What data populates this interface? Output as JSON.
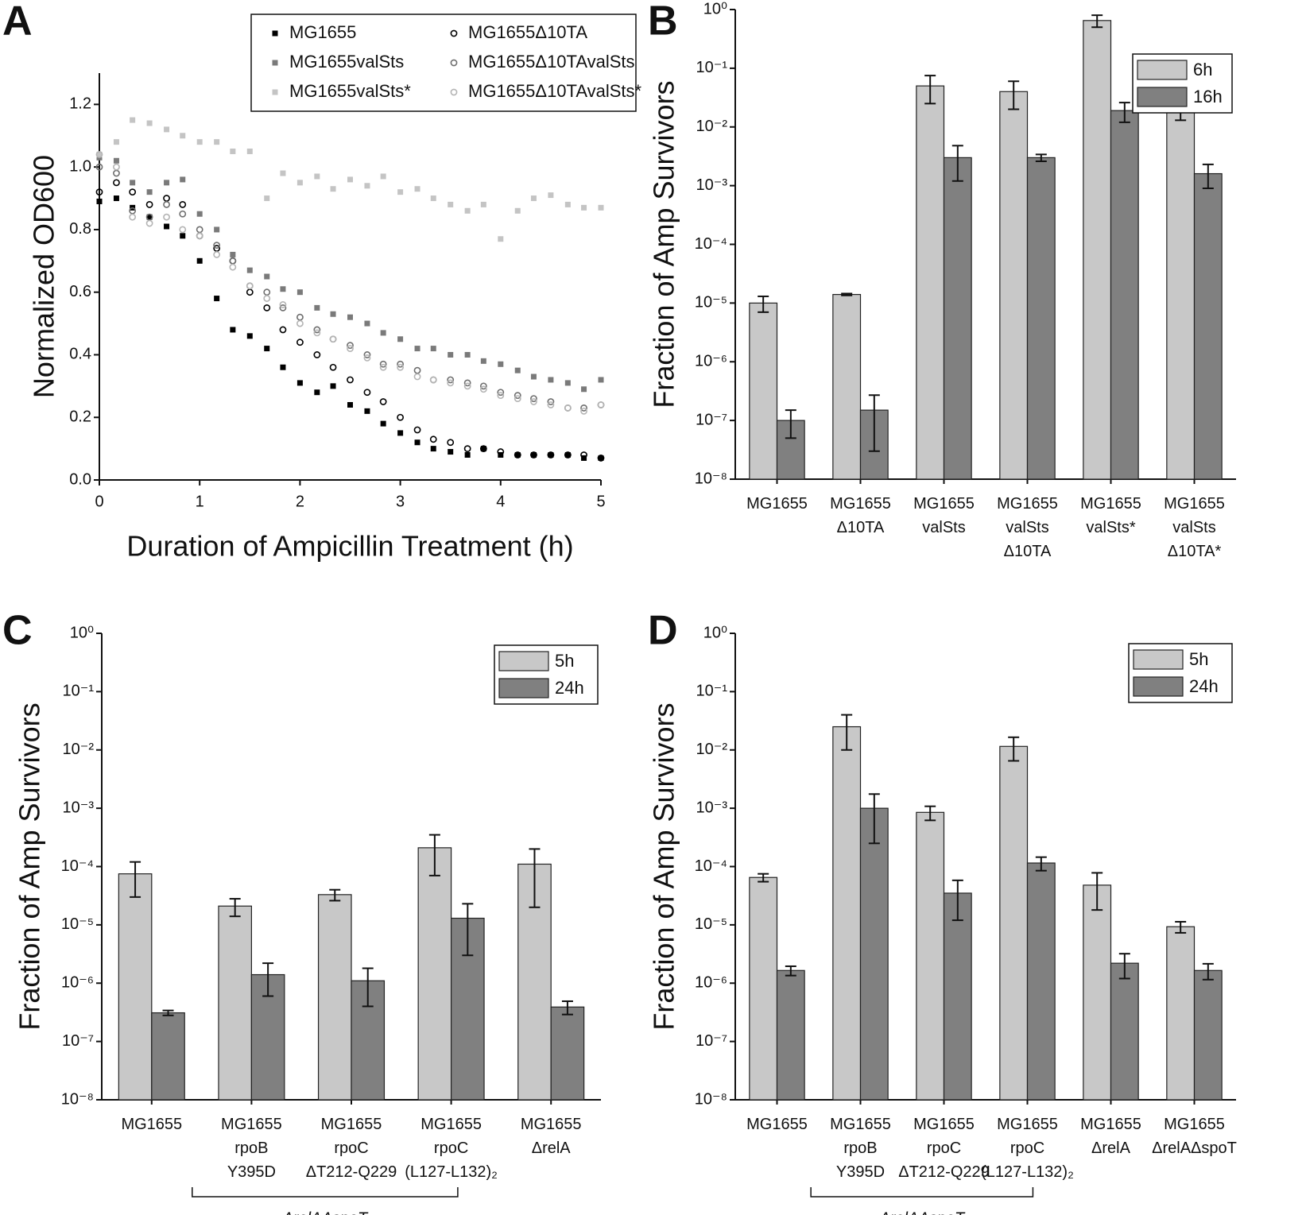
{
  "chart_data": [
    {
      "type": "scatter",
      "panel": "A",
      "xlabel": "Duration of Ampicillin Treatment (h)",
      "ylabel": "Normalized OD600",
      "xlim": [
        0,
        5
      ],
      "xticks": [
        0,
        1,
        2,
        3,
        4,
        5
      ],
      "ylim": [
        0,
        1.3
      ],
      "yticks": [
        {
          "value": 0,
          "label": "0.0"
        },
        0.2,
        0.4,
        0.6,
        0.8,
        {
          "value": 1,
          "label": "1.0"
        },
        1.2
      ],
      "legend": "upper right",
      "x": [
        0,
        0.17,
        0.33,
        0.5,
        0.67,
        0.83,
        1,
        1.17,
        1.33,
        1.5,
        1.67,
        1.83,
        2,
        2.17,
        2.33,
        2.5,
        2.67,
        2.83,
        3,
        3.17,
        3.33,
        3.5,
        3.67,
        3.83,
        4,
        4.17,
        4.33,
        4.5,
        4.67,
        4.83,
        5
      ],
      "series": [
        {
          "name": "MG1655",
          "color": "#000000",
          "marker": "square",
          "values": [
            0.89,
            0.9,
            0.87,
            0.84,
            0.81,
            0.78,
            0.7,
            0.58,
            0.48,
            0.46,
            0.42,
            0.36,
            0.31,
            0.28,
            0.3,
            0.24,
            0.22,
            0.18,
            0.15,
            0.12,
            0.1,
            0.09,
            0.08,
            0.1,
            0.08,
            0.08,
            0.08,
            0.08,
            0.08,
            0.07,
            0.07
          ]
        },
        {
          "name": "MG1655valSts",
          "color": "#7a7a7a",
          "marker": "square",
          "values": [
            1.03,
            1.02,
            0.95,
            0.92,
            0.95,
            0.96,
            0.85,
            0.8,
            0.72,
            0.67,
            0.65,
            0.61,
            0.6,
            0.55,
            0.53,
            0.52,
            0.5,
            0.47,
            0.45,
            0.42,
            0.42,
            0.4,
            0.4,
            0.38,
            0.37,
            0.35,
            0.33,
            0.32,
            0.31,
            0.29,
            0.32
          ]
        },
        {
          "name": "MG1655valSts*",
          "color": "#c4c4c4",
          "marker": "square",
          "values": [
            1.04,
            1.08,
            1.15,
            1.14,
            1.12,
            1.1,
            1.08,
            1.08,
            1.05,
            1.05,
            0.9,
            0.98,
            0.95,
            0.97,
            0.93,
            0.96,
            0.94,
            0.97,
            0.92,
            0.93,
            0.9,
            0.88,
            0.86,
            0.88,
            0.77,
            0.86,
            0.9,
            0.91,
            0.88,
            0.87,
            0.87
          ]
        },
        {
          "name": "MG1655Δ10TA",
          "color": "#000000",
          "marker": "circle",
          "values": [
            0.92,
            0.95,
            0.92,
            0.88,
            0.9,
            0.88,
            0.78,
            0.74,
            0.7,
            0.6,
            0.55,
            0.48,
            0.44,
            0.4,
            0.36,
            0.32,
            0.28,
            0.25,
            0.2,
            0.16,
            0.13,
            0.12,
            0.1,
            0.1,
            0.09,
            0.08,
            0.08,
            0.08,
            0.08,
            0.08,
            0.07
          ]
        },
        {
          "name": "MG1655Δ10TAvalSts",
          "color": "#6e6e6e",
          "marker": "circle",
          "values": [
            1.0,
            0.98,
            0.86,
            0.84,
            0.88,
            0.85,
            0.8,
            0.75,
            0.7,
            0.62,
            0.6,
            0.55,
            0.52,
            0.48,
            0.45,
            0.43,
            0.4,
            0.37,
            0.37,
            0.35,
            0.32,
            0.32,
            0.31,
            0.3,
            0.28,
            0.27,
            0.26,
            0.25,
            0.23,
            0.23,
            0.24
          ]
        },
        {
          "name": "MG1655Δ10TAvalSts*",
          "color": "#b4b4b4",
          "marker": "circle",
          "values": [
            1.04,
            1.0,
            0.84,
            0.82,
            0.84,
            0.8,
            0.78,
            0.72,
            0.68,
            0.62,
            0.58,
            0.56,
            0.5,
            0.47,
            0.45,
            0.42,
            0.39,
            0.36,
            0.36,
            0.33,
            0.32,
            0.31,
            0.3,
            0.29,
            0.27,
            0.26,
            0.25,
            0.24,
            0.23,
            0.22,
            0.24
          ]
        }
      ]
    },
    {
      "type": "bar",
      "panel": "B",
      "ylabel": "Fraction of Amp Survivors",
      "yscale": "log",
      "ylim": [
        1e-08,
        1
      ],
      "yticks": [
        {
          "value": 1,
          "label": "10⁰"
        },
        {
          "value": 0.1,
          "label": "10⁻¹"
        },
        {
          "value": 0.01,
          "label": "10⁻²"
        },
        {
          "value": 0.001,
          "label": "10⁻³"
        },
        {
          "value": 0.0001,
          "label": "10⁻⁴"
        },
        {
          "value": 1e-05,
          "label": "10⁻⁵"
        },
        {
          "value": 1e-06,
          "label": "10⁻⁶"
        },
        {
          "value": 1e-07,
          "label": "10⁻⁷"
        },
        {
          "value": 1e-08,
          "label": "10⁻⁸"
        }
      ],
      "legend": "upper right",
      "categories": [
        [
          "MG1655"
        ],
        [
          "MG1655",
          "Δ10TA"
        ],
        [
          "MG1655",
          "valSts"
        ],
        [
          "MG1655",
          "valSts",
          "Δ10TA"
        ],
        [
          "MG1655",
          "valSts*"
        ],
        [
          "MG1655",
          "valSts",
          "Δ10TA*"
        ]
      ],
      "series": [
        {
          "name": "6h",
          "color": "#c8c8c8",
          "values": [
            1e-05,
            1.4e-05,
            0.05,
            0.04,
            0.65,
            0.028
          ],
          "errors": [
            3e-06,
            5e-07,
            0.025,
            0.02,
            0.15,
            0.015
          ]
        },
        {
          "name": "16h",
          "color": "#808080",
          "values": [
            1e-07,
            1.5e-07,
            0.003,
            0.003,
            0.019,
            0.0016
          ],
          "errors": [
            5e-08,
            1.2e-07,
            0.0018,
            0.0004,
            0.007,
            0.0007
          ]
        }
      ]
    },
    {
      "type": "bar",
      "panel": "C",
      "ylabel": "Fraction of Amp Survivors",
      "yscale": "log",
      "ylim": [
        1e-08,
        1
      ],
      "yticks": [
        {
          "value": 1,
          "label": "10⁰"
        },
        {
          "value": 0.1,
          "label": "10⁻¹"
        },
        {
          "value": 0.01,
          "label": "10⁻²"
        },
        {
          "value": 0.001,
          "label": "10⁻³"
        },
        {
          "value": 0.0001,
          "label": "10⁻⁴"
        },
        {
          "value": 1e-05,
          "label": "10⁻⁵"
        },
        {
          "value": 1e-06,
          "label": "10⁻⁶"
        },
        {
          "value": 1e-07,
          "label": "10⁻⁷"
        },
        {
          "value": 1e-08,
          "label": "10⁻⁸"
        }
      ],
      "legend": "upper right",
      "bracket": "ΔrelAΔspoT",
      "categories": [
        [
          "MG1655"
        ],
        [
          "MG1655",
          "rpoB",
          "Y395D"
        ],
        [
          "MG1655",
          "rpoC",
          "ΔT212-Q229"
        ],
        [
          "MG1655",
          "rpoC",
          "(L127-L132)₂"
        ],
        [
          "MG1655",
          "ΔrelA"
        ]
      ],
      "series": [
        {
          "name": "5h",
          "color": "#c8c8c8",
          "values": [
            7.5e-05,
            2.1e-05,
            3.3e-05,
            0.00021,
            0.00011
          ],
          "errors": [
            4.5e-05,
            7e-06,
            7e-06,
            0.00014,
            9e-05
          ]
        },
        {
          "name": "24h",
          "color": "#808080",
          "values": [
            3.1e-07,
            1.4e-06,
            1.1e-06,
            1.3e-05,
            3.9e-07
          ],
          "errors": [
            3e-08,
            8e-07,
            7e-07,
            1e-05,
            1e-07
          ]
        }
      ]
    },
    {
      "type": "bar",
      "panel": "D",
      "ylabel": "Fraction of Amp Survivors",
      "yscale": "log",
      "ylim": [
        1e-08,
        1
      ],
      "yticks": [
        {
          "value": 1,
          "label": "10⁰"
        },
        {
          "value": 0.1,
          "label": "10⁻¹"
        },
        {
          "value": 0.01,
          "label": "10⁻²"
        },
        {
          "value": 0.001,
          "label": "10⁻³"
        },
        {
          "value": 0.0001,
          "label": "10⁻⁴"
        },
        {
          "value": 1e-05,
          "label": "10⁻⁵"
        },
        {
          "value": 1e-06,
          "label": "10⁻⁶"
        },
        {
          "value": 1e-07,
          "label": "10⁻⁷"
        },
        {
          "value": 1e-08,
          "label": "10⁻⁸"
        }
      ],
      "legend": "upper right",
      "bracket": "ΔrelAΔspoT",
      "categories": [
        [
          "MG1655"
        ],
        [
          "MG1655",
          "rpoB",
          "Y395D"
        ],
        [
          "MG1655",
          "rpoC",
          "ΔT212-Q229"
        ],
        [
          "MG1655",
          "rpoC",
          "(L127-L132)₂"
        ],
        [
          "MG1655",
          "ΔrelA"
        ],
        [
          "MG1655",
          "ΔrelAΔspoT"
        ]
      ],
      "series": [
        {
          "name": "5h",
          "color": "#c8c8c8",
          "values": [
            6.5e-05,
            0.025,
            0.00085,
            0.0115,
            4.8e-05,
            9.3e-06
          ],
          "errors": [
            1e-05,
            0.015,
            0.00023,
            0.005,
            3e-05,
            2e-06
          ]
        },
        {
          "name": "24h",
          "color": "#808080",
          "values": [
            1.65e-06,
            0.001,
            3.5e-05,
            0.000115,
            2.2e-06,
            1.65e-06
          ],
          "errors": [
            3e-07,
            0.00075,
            2.3e-05,
            3e-05,
            1e-06,
            5e-07
          ]
        }
      ]
    }
  ]
}
